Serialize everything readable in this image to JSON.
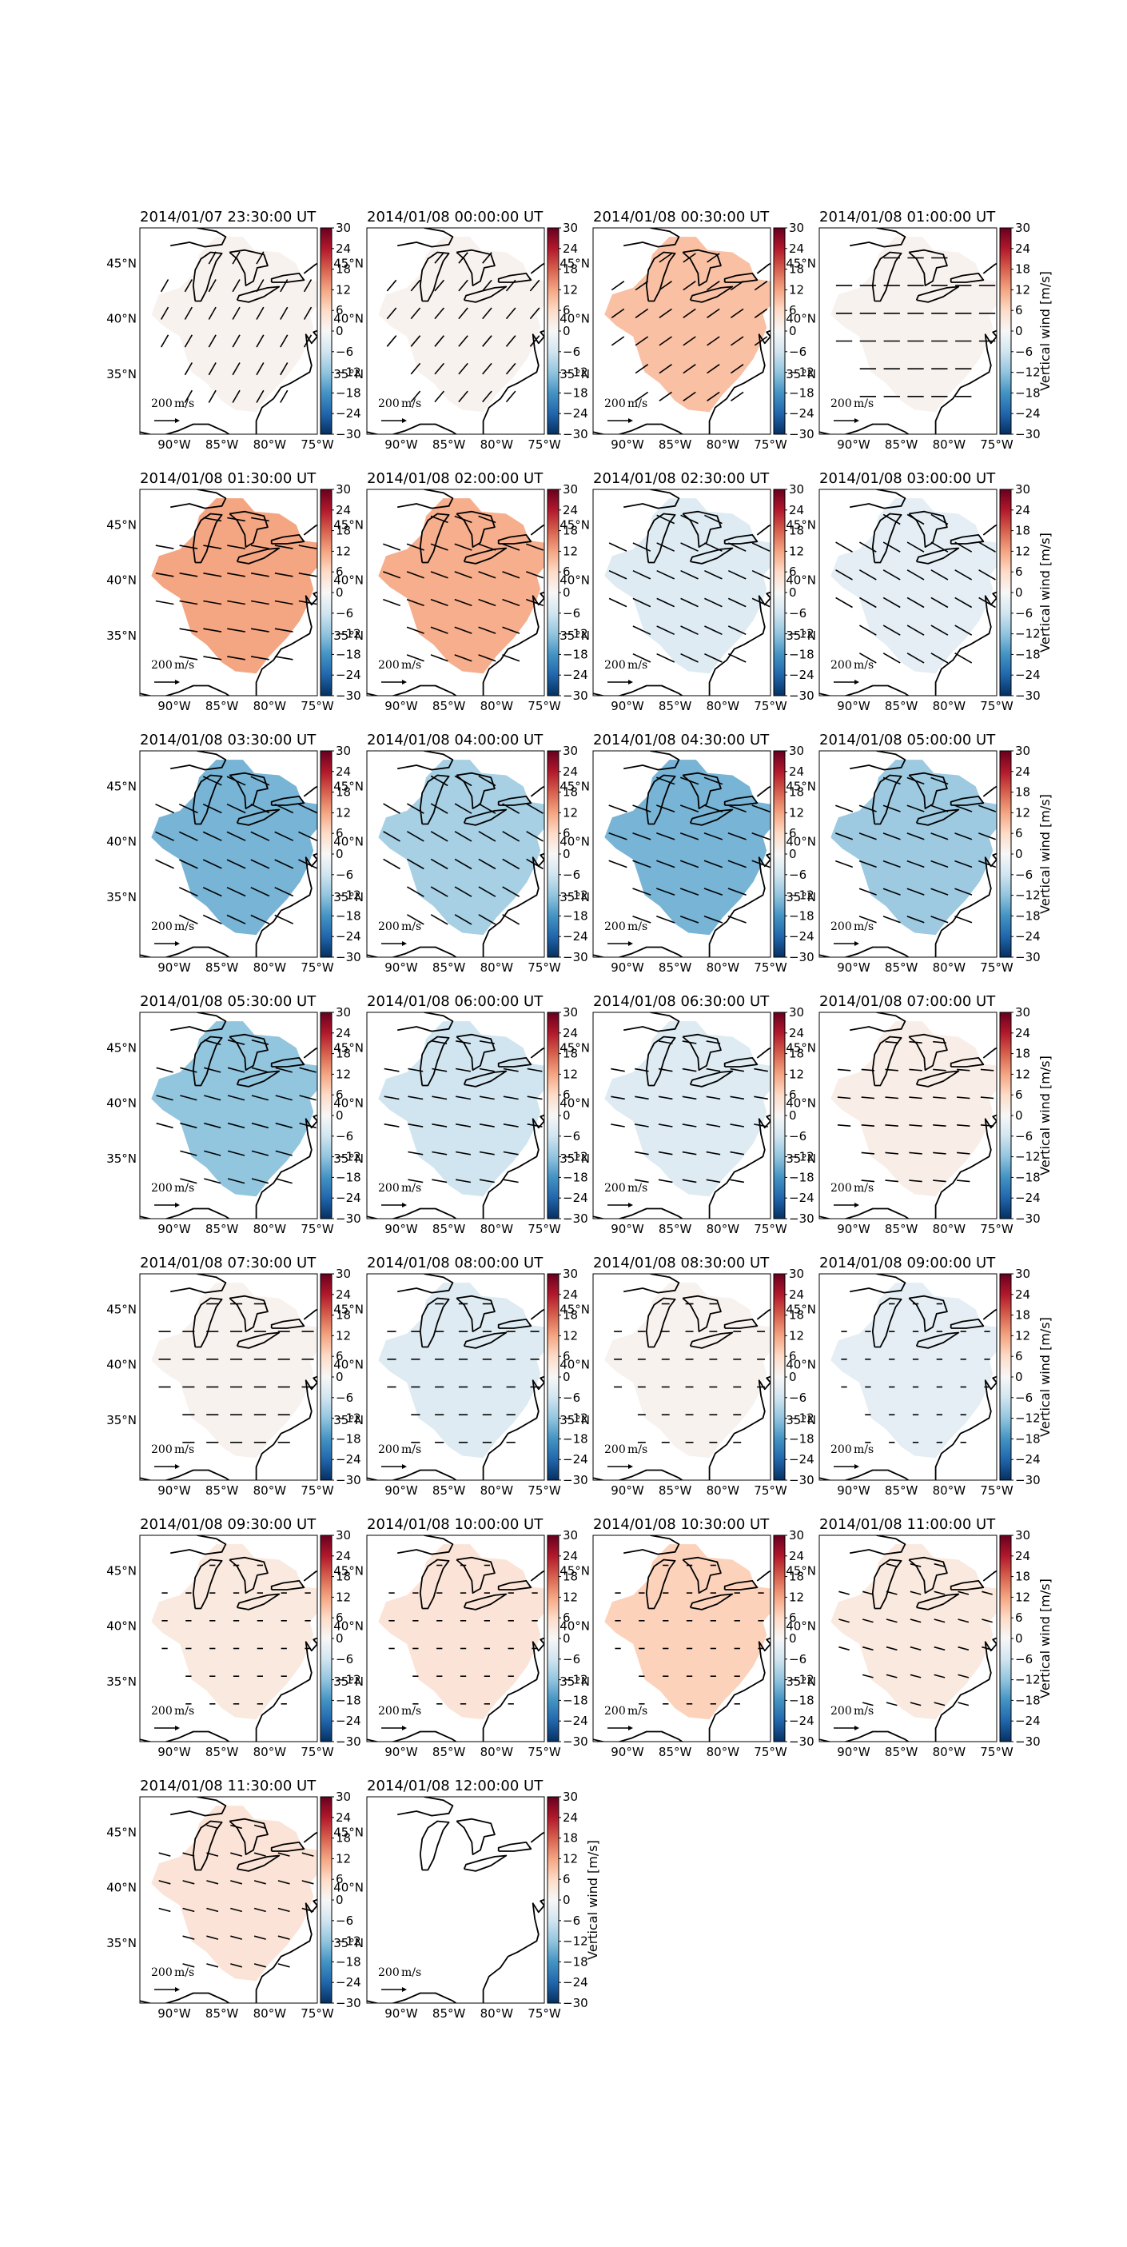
{
  "figure": {
    "colorbar_label": "Vertical wind [m/s]",
    "colorbar_ticks": [
      "30",
      "24",
      "18",
      "12",
      "6",
      "0",
      "−6",
      "−12",
      "−18",
      "−24",
      "−30"
    ],
    "lon_ticks": [
      "90°W",
      "85°W",
      "80°W",
      "75°W"
    ],
    "lat_ticks": [
      "45°N",
      "40°N",
      "35°N"
    ],
    "quiver_key_label": "200",
    "quiver_key_unit": "m/s",
    "colormap": "RdBu_r"
  },
  "chart_data": {
    "type": "heatmap",
    "description_note": "",
    "vmin": -30,
    "vmax": 30,
    "panels": [
      {
        "title": "2014/01/07 23:30:00 UT",
        "vertical_wind": 1,
        "vector_angle_deg": -60,
        "vector_mag": 0.45
      },
      {
        "title": "2014/01/08 00:00:00 UT",
        "vertical_wind": 1,
        "vector_angle_deg": -50,
        "vector_mag": 0.45
      },
      {
        "title": "2014/01/08 00:30:00 UT",
        "vertical_wind": 9,
        "vector_angle_deg": -35,
        "vector_mag": 0.5
      },
      {
        "title": "2014/01/08 01:00:00 UT",
        "vertical_wind": 1,
        "vector_angle_deg": 0,
        "vector_mag": 0.55
      },
      {
        "title": "2014/01/08 01:30:00 UT",
        "vertical_wind": 12,
        "vector_angle_deg": 10,
        "vector_mag": 0.65
      },
      {
        "title": "2014/01/08 02:00:00 UT",
        "vertical_wind": 11,
        "vector_angle_deg": 20,
        "vector_mag": 0.65
      },
      {
        "title": "2014/01/08 02:30:00 UT",
        "vertical_wind": -4,
        "vector_angle_deg": 25,
        "vector_mag": 0.7
      },
      {
        "title": "2014/01/08 03:00:00 UT",
        "vertical_wind": -3,
        "vector_angle_deg": 30,
        "vector_mag": 0.7
      },
      {
        "title": "2014/01/08 03:30:00 UT",
        "vertical_wind": -14,
        "vector_angle_deg": 25,
        "vector_mag": 0.75
      },
      {
        "title": "2014/01/08 04:00:00 UT",
        "vertical_wind": -10,
        "vector_angle_deg": 30,
        "vector_mag": 0.7
      },
      {
        "title": "2014/01/08 04:30:00 UT",
        "vertical_wind": -14,
        "vector_angle_deg": 20,
        "vector_mag": 0.7
      },
      {
        "title": "2014/01/08 05:00:00 UT",
        "vertical_wind": -11,
        "vector_angle_deg": 20,
        "vector_mag": 0.65
      },
      {
        "title": "2014/01/08 05:30:00 UT",
        "vertical_wind": -12,
        "vector_angle_deg": 15,
        "vector_mag": 0.6
      },
      {
        "title": "2014/01/08 06:00:00 UT",
        "vertical_wind": -6,
        "vector_angle_deg": 10,
        "vector_mag": 0.5
      },
      {
        "title": "2014/01/08 06:30:00 UT",
        "vertical_wind": -4,
        "vector_angle_deg": 10,
        "vector_mag": 0.45
      },
      {
        "title": "2014/01/08 07:00:00 UT",
        "vertical_wind": 2,
        "vector_angle_deg": 5,
        "vector_mag": 0.4
      },
      {
        "title": "2014/01/08 07:30:00 UT",
        "vertical_wind": 1,
        "vector_angle_deg": 0,
        "vector_mag": 0.35
      },
      {
        "title": "2014/01/08 08:00:00 UT",
        "vertical_wind": -4,
        "vector_angle_deg": 0,
        "vector_mag": 0.2
      },
      {
        "title": "2014/01/08 08:30:00 UT",
        "vertical_wind": 1,
        "vector_angle_deg": 0,
        "vector_mag": 0.15
      },
      {
        "title": "2014/01/08 09:00:00 UT",
        "vertical_wind": -3,
        "vector_angle_deg": 0,
        "vector_mag": 0.05
      },
      {
        "title": "2014/01/08 09:30:00 UT",
        "vertical_wind": 3,
        "vector_angle_deg": 0,
        "vector_mag": 0.05
      },
      {
        "title": "2014/01/08 10:00:00 UT",
        "vertical_wind": 4,
        "vector_angle_deg": 0,
        "vector_mag": 0.05
      },
      {
        "title": "2014/01/08 10:30:00 UT",
        "vertical_wind": 7,
        "vector_angle_deg": 0,
        "vector_mag": 0.05
      },
      {
        "title": "2014/01/08 11:00:00 UT",
        "vertical_wind": 3,
        "vector_angle_deg": 15,
        "vector_mag": 0.3
      },
      {
        "title": "2014/01/08 11:30:00 UT",
        "vertical_wind": 4,
        "vector_angle_deg": 15,
        "vector_mag": 0.35
      },
      {
        "title": "2014/01/08 12:00:00 UT",
        "vertical_wind": null,
        "vector_angle_deg": 0,
        "vector_mag": 0
      }
    ]
  }
}
